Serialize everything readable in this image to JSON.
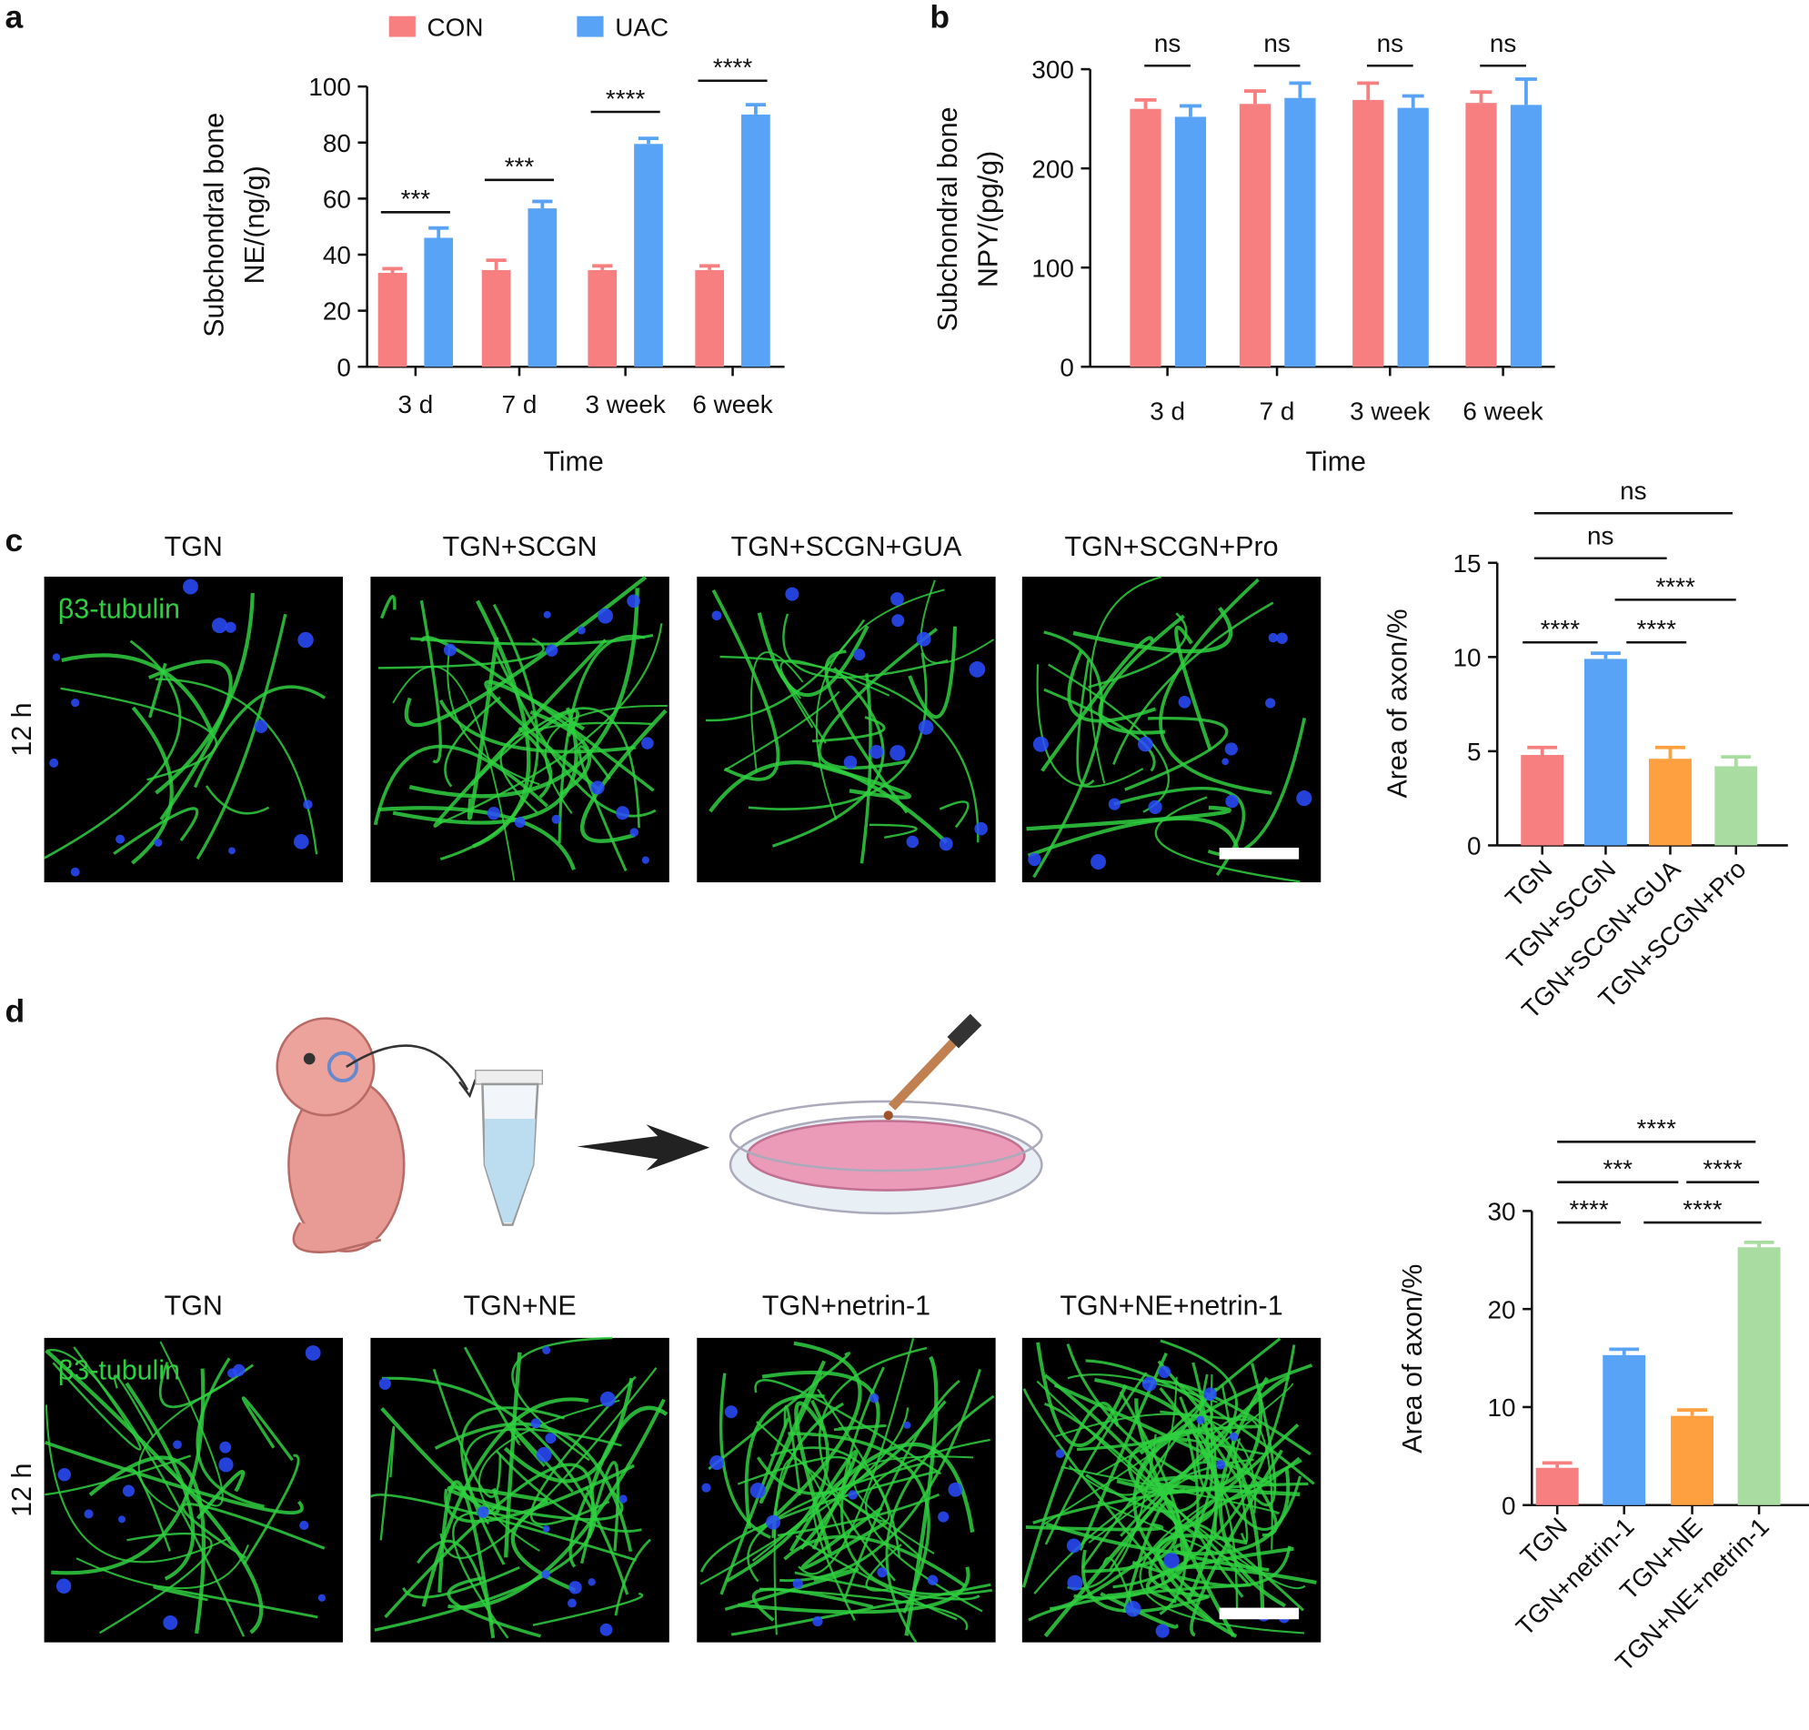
{
  "panel_labels": [
    "a",
    "b",
    "c",
    "d"
  ],
  "chart_data": [
    {
      "type": "bar",
      "categories": [
        "3 d",
        "7 d",
        "3 week",
        "6 week"
      ],
      "series": [
        {
          "name": "CON",
          "color": "#f77f7f",
          "values": [
            33.5,
            34.5,
            34.5,
            34.5
          ],
          "errors": [
            1.5,
            3.5,
            1.5,
            1.5
          ]
        },
        {
          "name": "UAC",
          "color": "#58a3f5",
          "values": [
            46,
            56.5,
            79.5,
            90
          ],
          "errors": [
            3.5,
            2.5,
            2,
            3.5
          ]
        }
      ],
      "ylim": [
        0,
        100
      ],
      "yticks": [
        0,
        20,
        40,
        60,
        80,
        100
      ],
      "ylabel": [
        "Subchondral bone",
        "NE/(ng/g)"
      ],
      "xlabel": "Time",
      "significance": [
        "***",
        "***",
        "****",
        "****"
      ]
    },
    {
      "type": "bar",
      "categories": [
        "3 d",
        "7 d",
        "3 week",
        "6 week"
      ],
      "series": [
        {
          "color": "#f77f7f",
          "values": [
            260,
            265,
            269,
            266
          ],
          "errors": [
            9,
            13,
            17,
            11
          ]
        },
        {
          "color": "#58a3f5",
          "values": [
            252,
            271,
            261,
            264
          ],
          "errors": [
            11,
            15,
            12,
            26
          ]
        }
      ],
      "ylim": [
        0,
        300
      ],
      "yticks": [
        0,
        100,
        200,
        300
      ],
      "ylabel": [
        "Subchondral bone",
        "NPY/(pg/g)"
      ],
      "xlabel": "Time",
      "significance": [
        "ns",
        "ns",
        "ns",
        "ns"
      ]
    },
    {
      "type": "bar",
      "categories": [
        "TGN",
        "TGN+SCGN",
        "TGN+SCGN+GUA",
        "TGN+SCGN+Pro"
      ],
      "values": [
        4.8,
        9.9,
        4.6,
        4.2
      ],
      "errors": [
        0.4,
        0.3,
        0.6,
        0.5
      ],
      "colors": [
        "#f77f7f",
        "#58a3f5",
        "#ffa040",
        "#a8dca0"
      ],
      "ylim": [
        0,
        15
      ],
      "yticks": [
        0,
        5,
        10,
        15
      ],
      "ylabel": "Area of axon/%",
      "significance": [
        "ns",
        "ns",
        "****",
        "****",
        "****"
      ]
    },
    {
      "type": "bar",
      "categories": [
        "TGN",
        "TGN+netrin-1",
        "TGN+NE",
        "TGN+NE+netrin-1"
      ],
      "values": [
        3.8,
        15.3,
        9.1,
        26.3
      ],
      "errors": [
        0.5,
        0.6,
        0.6,
        0.5
      ],
      "colors": [
        "#f77f7f",
        "#58a3f5",
        "#ffa040",
        "#a8dca0"
      ],
      "ylim": [
        0,
        30
      ],
      "yticks": [
        0,
        10,
        20,
        30
      ],
      "ylabel": "Area of axon/%",
      "significance": [
        "****",
        "***",
        "****",
        "****",
        "****"
      ]
    }
  ],
  "micrographs": [
    {
      "columns": [
        "TGN",
        "TGN+SCGN",
        "TGN+SCGN+GUA",
        "TGN+SCGN+Pro"
      ],
      "stain": "β3-tubulin",
      "time": "12 h"
    },
    {
      "columns": [
        "TGN",
        "TGN+NE",
        "TGN+netrin-1",
        "TGN+NE+netrin-1"
      ],
      "stain": "β3-tubulin",
      "time": "12 h"
    }
  ]
}
